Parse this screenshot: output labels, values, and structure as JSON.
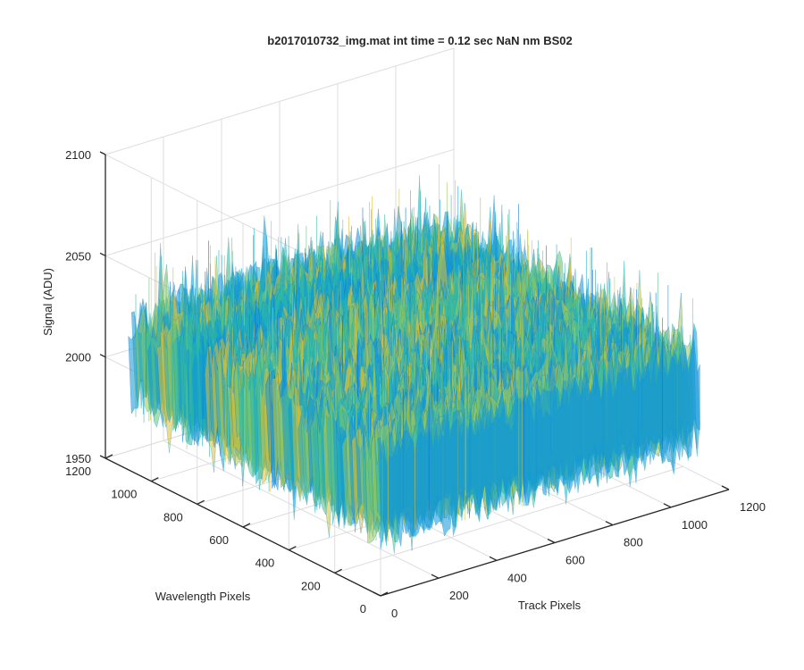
{
  "window": {
    "background": "#ffffff"
  },
  "chart_data": {
    "type": "surface",
    "title": "b2017010732_img.mat int time = 0.12 sec  NaN nm BS02",
    "xlabel": "Track Pixels",
    "ylabel": "Wavelength Pixels",
    "zlabel": "Signal (ADU)",
    "xlim": [
      0,
      1200
    ],
    "ylim": [
      0,
      1200
    ],
    "zlim": [
      1950,
      2100
    ],
    "xticks": [
      0,
      200,
      400,
      600,
      800,
      1000,
      1200
    ],
    "yticks": [
      0,
      200,
      400,
      600,
      800,
      1000,
      1200
    ],
    "zticks": [
      1950,
      2000,
      2050,
      2100
    ],
    "x_tick_labels": [
      "0",
      "200",
      "400",
      "600",
      "800",
      "1000",
      "1200"
    ],
    "y_tick_labels": [
      "0",
      "200",
      "400",
      "600",
      "800",
      "1000",
      "1200"
    ],
    "z_tick_labels": [
      "1950",
      "2000",
      "2050",
      "2100"
    ],
    "surface": {
      "x_range": [
        0,
        1100
      ],
      "y_range": [
        0,
        1100
      ],
      "mean_level": 2005,
      "approx_min": 1965,
      "approx_max": 2085,
      "colormap": "parula",
      "color_scale": [
        "#0c72d6",
        "#1195d8",
        "#18abc8",
        "#2bb8a8",
        "#5ec282",
        "#99c65c",
        "#c9c43c",
        "#e2bd30"
      ]
    },
    "grid": true,
    "box": false,
    "colors": {
      "axis": "#262626",
      "grid": "#dddddd",
      "text": "#262626"
    }
  }
}
